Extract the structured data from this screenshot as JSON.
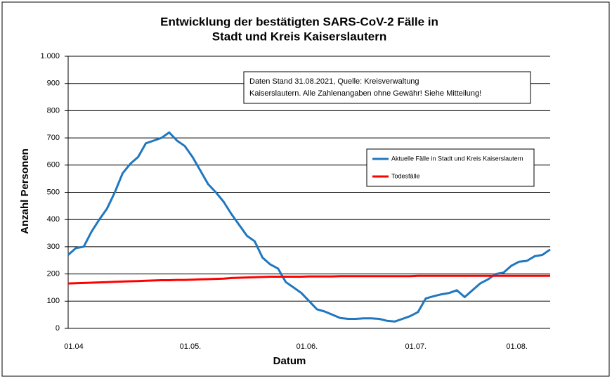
{
  "chart_data": {
    "type": "line",
    "title": [
      "Entwicklung der bestätigten SARS-CoV-2 Fälle in",
      "Stadt und Kreis Kaiserslautern"
    ],
    "annotation": [
      "Daten Stand 31.08.2021, Quelle: Kreisverwaltung",
      "Kaiserslautern. Alle Zahlenangaben ohne Gewähr! Siehe Mitteilung!"
    ],
    "x_label": "Datum",
    "y_label": "Anzahl Personen",
    "categories": [
      "01.04",
      null,
      null,
      null,
      null,
      null,
      null,
      null,
      null,
      null,
      null,
      null,
      null,
      null,
      null,
      "01.05.",
      null,
      null,
      null,
      null,
      null,
      null,
      null,
      null,
      null,
      null,
      null,
      null,
      null,
      null,
      "01.06.",
      null,
      null,
      null,
      null,
      null,
      null,
      null,
      null,
      null,
      null,
      null,
      null,
      null,
      "01.07.",
      null,
      null,
      null,
      null,
      null,
      null,
      null,
      null,
      null,
      null,
      null,
      null,
      "01.08.",
      null,
      null,
      null,
      null,
      null
    ],
    "series": [
      {
        "name": "Aktuelle Fälle in Stadt und Kreis Kaiserslautern",
        "color": "#1f77c0",
        "values": [
          270,
          295,
          300,
          355,
          400,
          440,
          500,
          570,
          605,
          630,
          680,
          690,
          700,
          720,
          690,
          670,
          630,
          580,
          530,
          500,
          465,
          420,
          380,
          340,
          320,
          260,
          235,
          220,
          170,
          150,
          130,
          100,
          70,
          62,
          50,
          38,
          35,
          35,
          37,
          37,
          35,
          28,
          25,
          35,
          45,
          60,
          110,
          118,
          125,
          130,
          140,
          115,
          140,
          165,
          180,
          200,
          205,
          230,
          245,
          248,
          265,
          270,
          290
        ]
      },
      {
        "name": "Todesfälle",
        "color": "#ff0000",
        "values": [
          165,
          166,
          167,
          168,
          169,
          170,
          171,
          172,
          173,
          174,
          175,
          176,
          177,
          177,
          178,
          178,
          179,
          180,
          181,
          182,
          183,
          185,
          186,
          187,
          188,
          189,
          190,
          190,
          190,
          190,
          190,
          191,
          191,
          191,
          191,
          192,
          192,
          192,
          192,
          192,
          192,
          192,
          192,
          192,
          192,
          193,
          193,
          193,
          193,
          193,
          193,
          193,
          193,
          193,
          193,
          193,
          193,
          193,
          193,
          193,
          193,
          193,
          193
        ]
      }
    ],
    "ylim": [
      0,
      1000
    ],
    "yticks": [
      0,
      100,
      200,
      300,
      400,
      500,
      600,
      700,
      800,
      900,
      {
        "value": 1000,
        "label": "1.000"
      }
    ],
    "grid": true
  }
}
